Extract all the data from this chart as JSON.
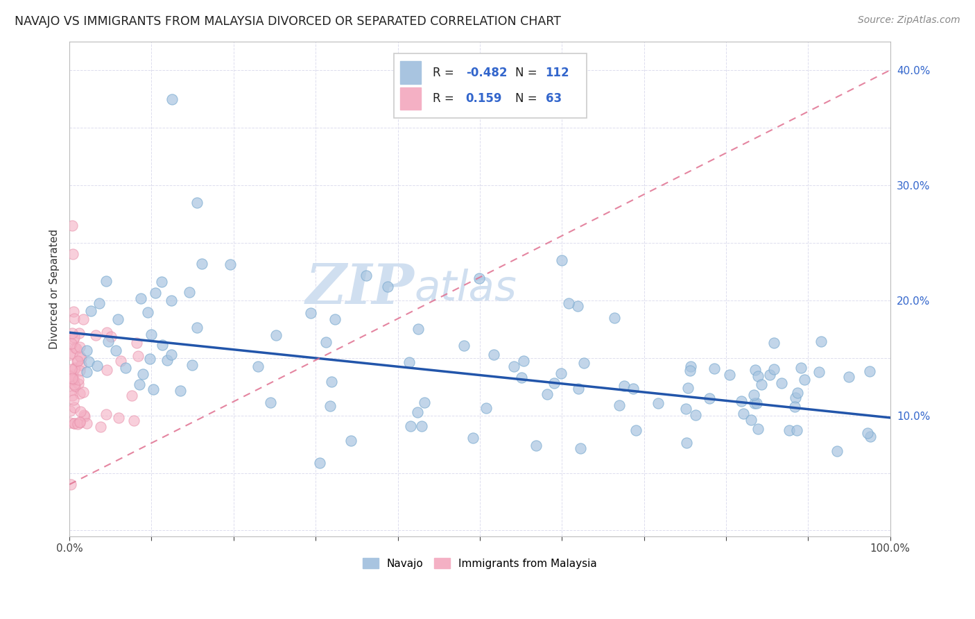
{
  "title": "NAVAJO VS IMMIGRANTS FROM MALAYSIA DIVORCED OR SEPARATED CORRELATION CHART",
  "source": "Source: ZipAtlas.com",
  "ylabel": "Divorced or Separated",
  "xlim": [
    0.0,
    1.0
  ],
  "ylim": [
    -0.005,
    0.425
  ],
  "navajo_color": "#a8c4e0",
  "navajo_edge_color": "#7aaad0",
  "malaysia_color": "#f4b0c4",
  "malaysia_edge_color": "#e890aa",
  "navajo_R": -0.482,
  "navajo_N": 112,
  "malaysia_R": 0.159,
  "malaysia_N": 63,
  "navajo_line_color": "#2255aa",
  "malaysia_line_color": "#e07090",
  "legend_text_color": "#3366cc",
  "watermark_zip": "ZIP",
  "watermark_atlas": "atlas",
  "watermark_color": "#d0dff0",
  "background_color": "#ffffff",
  "grid_color": "#ddddee"
}
